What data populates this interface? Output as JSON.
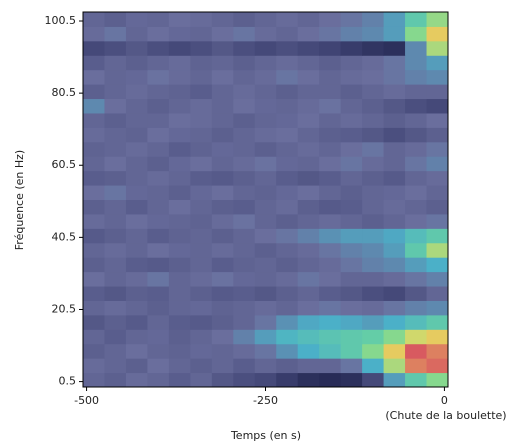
{
  "chart_data": {
    "type": "heatmap",
    "xlabel": "Temps (en s)",
    "ylabel": "Fréquence (en Hz)",
    "annotation": "(Chute de la boulette)",
    "xlim": [
      -505,
      5
    ],
    "xticks": [
      -500,
      -250,
      0
    ],
    "ylim": [
      -1,
      103
    ],
    "yticks": [
      0.5,
      20.5,
      40.5,
      60.5,
      80.5,
      100.5
    ],
    "xbins": [
      -505,
      -475,
      -445,
      -415,
      -385,
      -355,
      -325,
      -295,
      -265,
      -235,
      -205,
      -175,
      -145,
      -115,
      -85,
      -55,
      -25,
      5
    ],
    "ybins": [
      -1,
      3,
      7,
      11,
      15,
      19,
      23,
      27,
      31,
      35,
      39,
      43,
      47,
      51,
      55,
      59,
      63,
      67,
      71,
      75,
      79,
      83,
      87,
      91,
      95,
      99,
      103
    ],
    "zlim": [
      0,
      1
    ],
    "colormap": [
      "#15183f",
      "#3c4070",
      "#6b6f9e",
      "#4bb0c8",
      "#6ed89a",
      "#e8d860",
      "#d85a60"
    ],
    "z": [
      [
        0.3,
        0.28,
        0.32,
        0.3,
        0.27,
        0.3,
        0.25,
        0.22,
        0.2,
        0.15,
        0.1,
        0.08,
        0.1,
        0.2,
        0.45,
        0.6,
        0.7
      ],
      [
        0.32,
        0.3,
        0.28,
        0.33,
        0.3,
        0.28,
        0.3,
        0.27,
        0.3,
        0.28,
        0.3,
        0.3,
        0.35,
        0.5,
        0.75,
        0.95,
        0.98
      ],
      [
        0.28,
        0.3,
        0.33,
        0.3,
        0.29,
        0.31,
        0.3,
        0.32,
        0.35,
        0.42,
        0.5,
        0.55,
        0.6,
        0.7,
        0.85,
        1,
        0.95
      ],
      [
        0.3,
        0.27,
        0.3,
        0.31,
        0.28,
        0.3,
        0.33,
        0.38,
        0.45,
        0.52,
        0.55,
        0.58,
        0.6,
        0.62,
        0.7,
        0.8,
        0.85
      ],
      [
        0.25,
        0.28,
        0.26,
        0.3,
        0.27,
        0.26,
        0.28,
        0.3,
        0.35,
        0.42,
        0.48,
        0.5,
        0.48,
        0.45,
        0.5,
        0.55,
        0.6
      ],
      [
        0.3,
        0.32,
        0.3,
        0.28,
        0.3,
        0.31,
        0.29,
        0.3,
        0.32,
        0.3,
        0.33,
        0.35,
        0.33,
        0.32,
        0.35,
        0.38,
        0.4
      ],
      [
        0.27,
        0.25,
        0.28,
        0.27,
        0.3,
        0.28,
        0.26,
        0.27,
        0.25,
        0.28,
        0.3,
        0.27,
        0.25,
        0.22,
        0.2,
        0.25,
        0.3
      ],
      [
        0.33,
        0.3,
        0.32,
        0.35,
        0.3,
        0.32,
        0.34,
        0.31,
        0.3,
        0.32,
        0.35,
        0.33,
        0.3,
        0.3,
        0.32,
        0.35,
        0.38
      ],
      [
        0.28,
        0.3,
        0.27,
        0.26,
        0.28,
        0.3,
        0.27,
        0.29,
        0.3,
        0.28,
        0.3,
        0.32,
        0.35,
        0.38,
        0.4,
        0.45,
        0.5
      ],
      [
        0.3,
        0.32,
        0.3,
        0.33,
        0.31,
        0.3,
        0.32,
        0.3,
        0.28,
        0.3,
        0.32,
        0.35,
        0.38,
        0.4,
        0.45,
        0.6,
        0.75
      ],
      [
        0.26,
        0.28,
        0.3,
        0.27,
        0.29,
        0.3,
        0.28,
        0.3,
        0.33,
        0.35,
        0.38,
        0.42,
        0.45,
        0.45,
        0.48,
        0.55,
        0.6
      ],
      [
        0.32,
        0.3,
        0.33,
        0.31,
        0.3,
        0.29,
        0.32,
        0.34,
        0.3,
        0.28,
        0.3,
        0.32,
        0.3,
        0.28,
        0.3,
        0.33,
        0.35
      ],
      [
        0.28,
        0.3,
        0.27,
        0.3,
        0.33,
        0.3,
        0.28,
        0.27,
        0.3,
        0.32,
        0.28,
        0.26,
        0.27,
        0.3,
        0.32,
        0.3,
        0.28
      ],
      [
        0.33,
        0.35,
        0.31,
        0.3,
        0.28,
        0.31,
        0.33,
        0.3,
        0.29,
        0.31,
        0.33,
        0.3,
        0.28,
        0.3,
        0.31,
        0.33,
        0.3
      ],
      [
        0.27,
        0.28,
        0.3,
        0.32,
        0.3,
        0.27,
        0.26,
        0.28,
        0.3,
        0.27,
        0.25,
        0.27,
        0.3,
        0.28,
        0.26,
        0.3,
        0.32
      ],
      [
        0.3,
        0.33,
        0.3,
        0.28,
        0.31,
        0.33,
        0.3,
        0.32,
        0.34,
        0.31,
        0.3,
        0.33,
        0.35,
        0.32,
        0.3,
        0.35,
        0.38
      ],
      [
        0.29,
        0.3,
        0.32,
        0.3,
        0.27,
        0.29,
        0.31,
        0.3,
        0.28,
        0.3,
        0.32,
        0.3,
        0.33,
        0.35,
        0.3,
        0.32,
        0.35
      ],
      [
        0.32,
        0.3,
        0.29,
        0.33,
        0.31,
        0.3,
        0.28,
        0.3,
        0.32,
        0.33,
        0.3,
        0.28,
        0.27,
        0.25,
        0.22,
        0.25,
        0.28
      ],
      [
        0.3,
        0.28,
        0.3,
        0.3,
        0.33,
        0.32,
        0.3,
        0.28,
        0.3,
        0.31,
        0.33,
        0.3,
        0.32,
        0.3,
        0.28,
        0.3,
        0.33
      ],
      [
        0.4,
        0.33,
        0.3,
        0.28,
        0.3,
        0.32,
        0.3,
        0.33,
        0.31,
        0.3,
        0.32,
        0.34,
        0.3,
        0.28,
        0.25,
        0.22,
        0.2
      ],
      [
        0.28,
        0.3,
        0.32,
        0.3,
        0.29,
        0.27,
        0.3,
        0.32,
        0.3,
        0.28,
        0.3,
        0.3,
        0.28,
        0.3,
        0.32,
        0.3,
        0.3
      ],
      [
        0.33,
        0.3,
        0.31,
        0.34,
        0.32,
        0.3,
        0.33,
        0.3,
        0.32,
        0.35,
        0.33,
        0.3,
        0.32,
        0.33,
        0.35,
        0.38,
        0.4
      ],
      [
        0.27,
        0.3,
        0.28,
        0.3,
        0.32,
        0.29,
        0.3,
        0.28,
        0.3,
        0.32,
        0.3,
        0.28,
        0.3,
        0.32,
        0.35,
        0.4,
        0.45
      ],
      [
        0.2,
        0.22,
        0.25,
        0.22,
        0.2,
        0.22,
        0.25,
        0.22,
        0.2,
        0.22,
        0.2,
        0.18,
        0.15,
        0.12,
        0.1,
        0.4,
        0.75
      ],
      [
        0.32,
        0.35,
        0.3,
        0.33,
        0.31,
        0.3,
        0.33,
        0.35,
        0.32,
        0.3,
        0.33,
        0.35,
        0.38,
        0.4,
        0.45,
        0.7,
        0.85
      ],
      [
        0.3,
        0.28,
        0.31,
        0.3,
        0.33,
        0.32,
        0.3,
        0.28,
        0.3,
        0.32,
        0.3,
        0.33,
        0.35,
        0.38,
        0.45,
        0.6,
        0.72
      ]
    ]
  }
}
